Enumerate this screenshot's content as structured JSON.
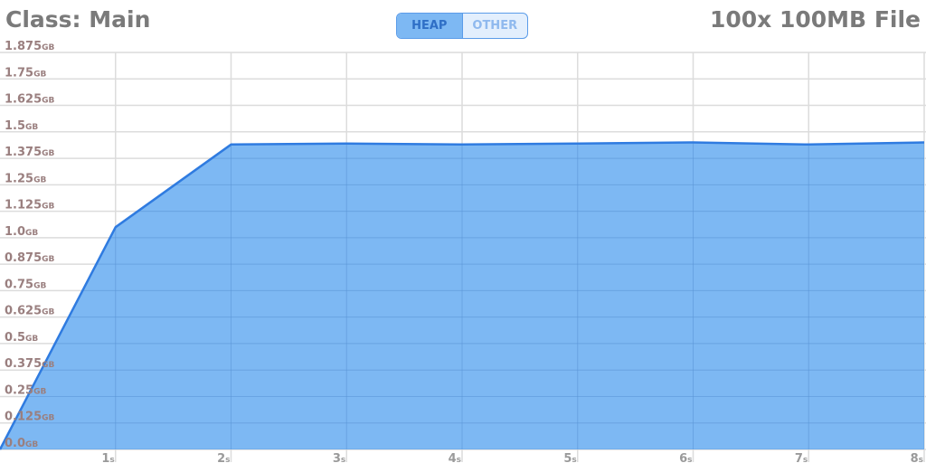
{
  "header": {
    "class_label": "Class: Main",
    "file_label": "100x 100MB File"
  },
  "toggle": {
    "options": [
      {
        "label": "HEAP",
        "active": true
      },
      {
        "label": "OTHER",
        "active": false
      }
    ]
  },
  "colors": {
    "area_fill": "#7db8f3",
    "area_line": "#2f7be0",
    "grid": "#dcdcdc",
    "y_label": "#9a7f7f",
    "x_label": "#9a9a9a"
  },
  "chart_data": {
    "type": "area",
    "title": "",
    "xlabel": "",
    "ylabel": "",
    "x_unit": "s",
    "y_unit": "GB",
    "xlim": [
      0,
      8
    ],
    "ylim": [
      0,
      1.875
    ],
    "y_ticks": [
      "0.0",
      "0.125",
      "0.25",
      "0.375",
      "0.5",
      "0.625",
      "0.75",
      "0.875",
      "1.0",
      "1.125",
      "1.25",
      "1.375",
      "1.5",
      "1.625",
      "1.75",
      "1.875"
    ],
    "x_ticks": [
      "1",
      "2",
      "3",
      "4",
      "5",
      "6",
      "7",
      "8"
    ],
    "grid": true,
    "series": [
      {
        "x": [
          0,
          1,
          2,
          3,
          4,
          5,
          6,
          7,
          8
        ],
        "values": [
          0.0,
          1.05,
          1.44,
          1.445,
          1.44,
          1.445,
          1.45,
          1.44,
          1.45
        ]
      }
    ]
  }
}
